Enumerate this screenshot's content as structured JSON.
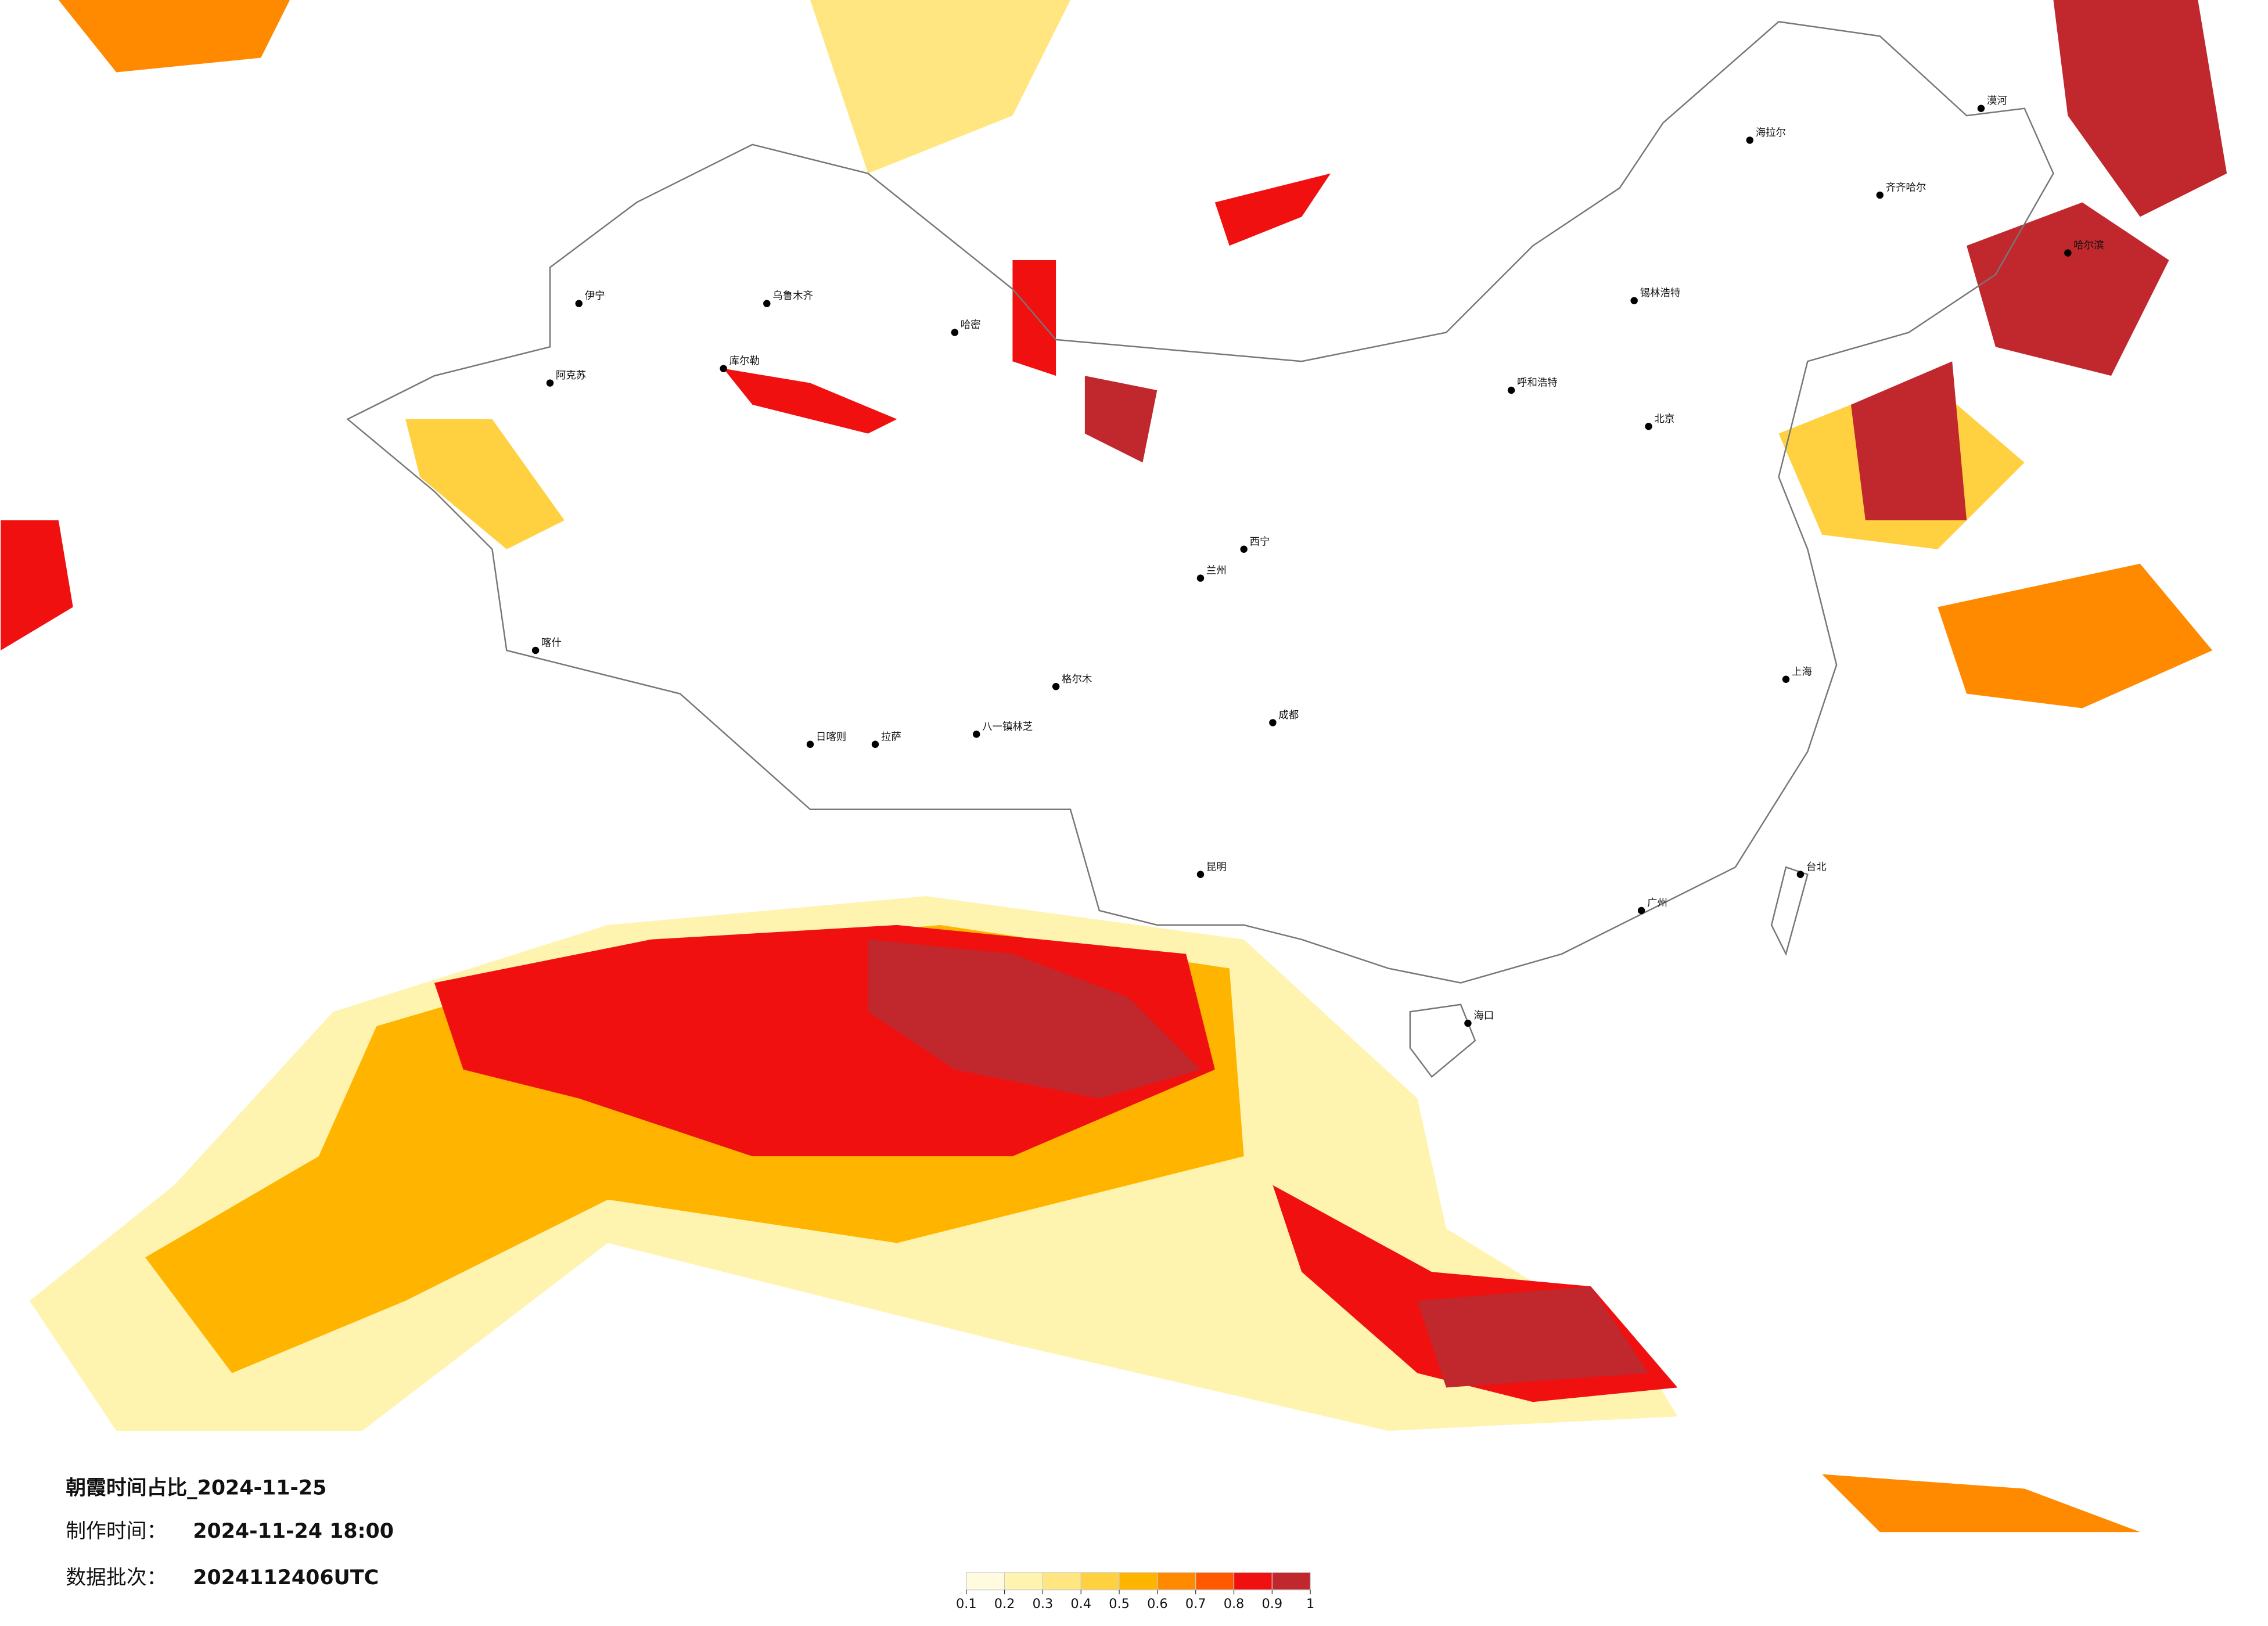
{
  "title": "朝霞时间占比_2024-11-25",
  "made_label": "制作时间：",
  "made_value": "2024-11-24 18:00",
  "batch_label": "数据批次：",
  "batch_value": "2024112406UTC",
  "legend": {
    "ticks": [
      0.1,
      0.2,
      0.3,
      0.4,
      0.5,
      0.6,
      0.7,
      0.8,
      0.9,
      1
    ],
    "colors": [
      "#fffbe0",
      "#fff3b0",
      "#ffe680",
      "#ffd040",
      "#ffb400",
      "#ff8a00",
      "#ff5a00",
      "#f01010",
      "#c0282d"
    ]
  },
  "cities": [
    "伊宁",
    "阿克苏",
    "库尔勒",
    "乌鲁木齐",
    "哈密",
    "喀什",
    "日喀则",
    "拉萨",
    "八一镇林芝",
    "格尔木",
    "西宁",
    "兰州",
    "成都",
    "昆明",
    "海口",
    "广州",
    "台北",
    "上海",
    "北京",
    "呼和浩特",
    "锡林浩特",
    "海拉尔",
    "齐齐哈尔",
    "哈尔滨",
    "漠河"
  ]
}
